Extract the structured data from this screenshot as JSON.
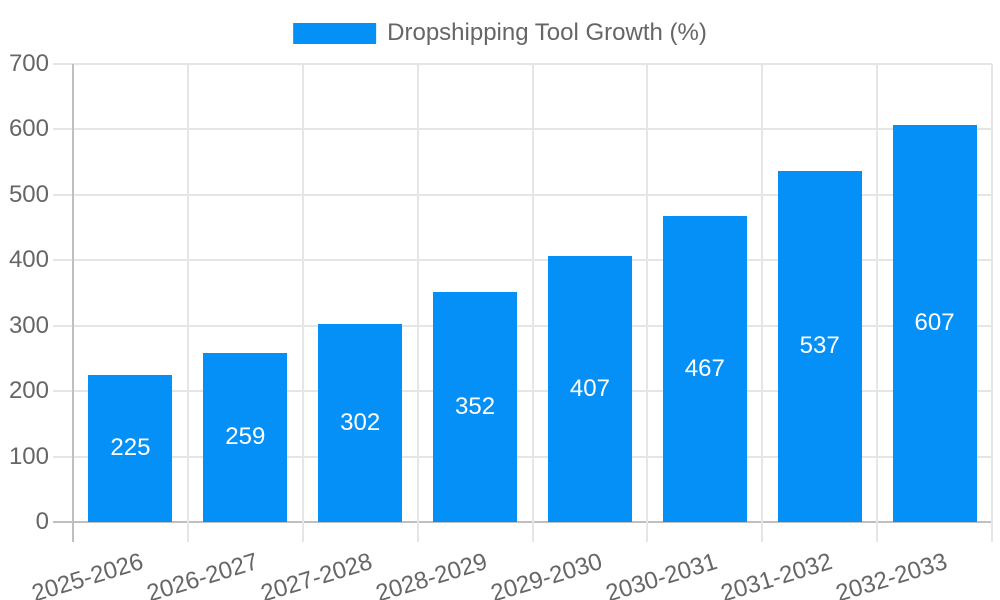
{
  "legend": {
    "label": "Dropshipping Tool Growth (%)"
  },
  "colors": {
    "bar": "#0590f8",
    "grid": "#e5e5e5",
    "axis": "#bfbfbf",
    "text": "#666666",
    "value_label": "#ffffff",
    "background": "#ffffff"
  },
  "chart_data": {
    "type": "bar",
    "title": "Dropshipping Tool Growth (%)",
    "categories": [
      "2025-2026",
      "2026-2027",
      "2027-2028",
      "2028-2029",
      "2029-2030",
      "2030-2031",
      "2031-2032",
      "2032-2033"
    ],
    "values": [
      225,
      259,
      302,
      352,
      407,
      467,
      537,
      607
    ],
    "xlabel": "",
    "ylabel": "",
    "ylim": [
      0,
      700
    ],
    "ytick_step": 100,
    "grid": true,
    "legend_position": "top",
    "value_labels": "inside-center"
  }
}
